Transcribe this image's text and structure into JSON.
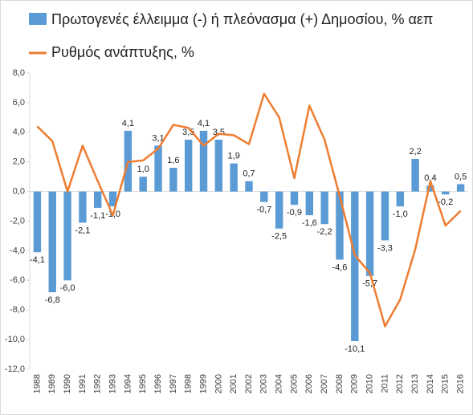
{
  "chart_data": {
    "type": "bar",
    "categories": [
      "1988",
      "1989",
      "1990",
      "1991",
      "1992",
      "1993",
      "1994",
      "1995",
      "1996",
      "1997",
      "1998",
      "1999",
      "2000",
      "2001",
      "2002",
      "2003",
      "2004",
      "2005",
      "2006",
      "2007",
      "2008",
      "2009",
      "2010",
      "2011",
      "2012",
      "2013",
      "2014",
      "2015",
      "2016"
    ],
    "series": [
      {
        "name": "Πρωτογενές έλλειμμα (-) ή πλεόνασμα (+) Δημοσίου, % αεπ",
        "type": "bar",
        "color": "#5b9bd5",
        "values": [
          -4.1,
          -6.8,
          -6.0,
          -2.1,
          -1.1,
          -1.0,
          4.1,
          1.0,
          3.1,
          1.6,
          3.5,
          4.1,
          3.5,
          1.9,
          0.7,
          -0.7,
          -2.5,
          -0.9,
          -1.6,
          -2.2,
          -4.6,
          -10.1,
          -5.7,
          -3.3,
          -1.0,
          2.2,
          0.4,
          -0.2,
          0.5
        ],
        "value_labels": [
          "-4,1",
          "-6,8",
          "-6,0",
          "-2,1",
          "-1,1",
          "-1,0",
          "4,1",
          "1,0",
          "3,1",
          "1,6",
          "3,5",
          "4,1",
          "3,5",
          "1,9",
          "0,7",
          "-0,7",
          "-2,5",
          "-0,9",
          "-1,6",
          "-2,2",
          "-4,6",
          "-10,1",
          "-5,7",
          "-3,3",
          "-1,0",
          "2,2",
          "0,4",
          "-0,2",
          "0,5"
        ]
      },
      {
        "name": "Ρυθμός ανάπτυξης, %",
        "type": "line",
        "color": "#ed7d31",
        "values": [
          4.4,
          3.4,
          0.0,
          3.1,
          0.7,
          -1.6,
          2.0,
          2.1,
          2.9,
          4.5,
          4.3,
          3.1,
          3.9,
          3.8,
          3.2,
          6.6,
          5.0,
          0.9,
          5.8,
          3.5,
          -0.3,
          -4.3,
          -5.5,
          -9.1,
          -7.3,
          -3.9,
          0.7,
          -2.3,
          -1.3
        ]
      }
    ],
    "ylim": [
      -12,
      8
    ],
    "yticks": [
      {
        "value": -12,
        "label": "-12,0"
      },
      {
        "value": -10,
        "label": "-10,0"
      },
      {
        "value": -8,
        "label": "-8,0"
      },
      {
        "value": -6,
        "label": "-6,0"
      },
      {
        "value": -4,
        "label": "-4,0"
      },
      {
        "value": -2,
        "label": "-2,0"
      },
      {
        "value": 0,
        "label": "0,0"
      },
      {
        "value": 2,
        "label": "2,0"
      },
      {
        "value": 4,
        "label": "4,0"
      },
      {
        "value": 6,
        "label": "6,0"
      },
      {
        "value": 8,
        "label": "8,0"
      }
    ],
    "grid": false
  }
}
